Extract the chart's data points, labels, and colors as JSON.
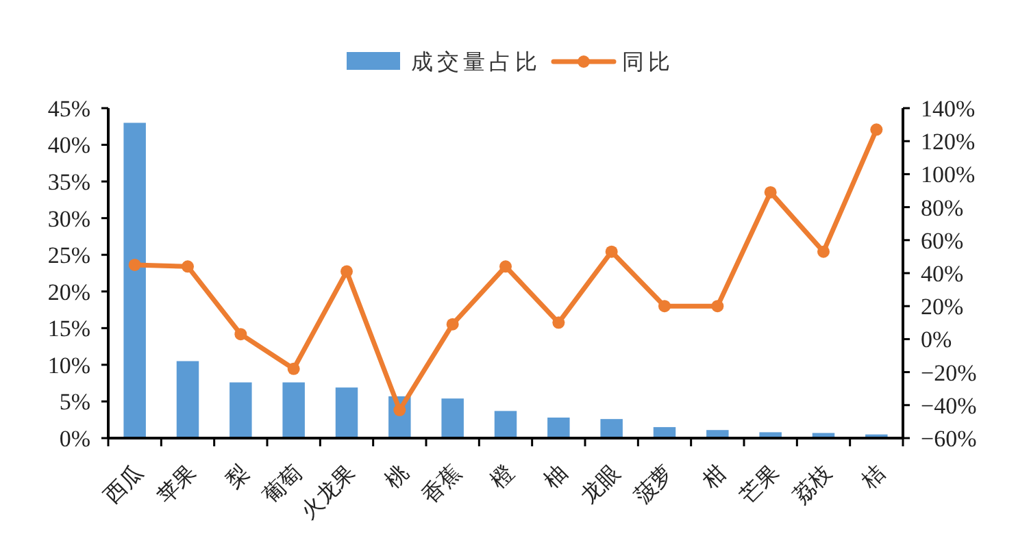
{
  "chart_data": {
    "type": "bar",
    "categories": [
      "西瓜",
      "苹果",
      "梨",
      "葡萄",
      "火龙果",
      "桃",
      "香蕉",
      "橙",
      "柚",
      "龙眼",
      "菠萝",
      "柑",
      "芒果",
      "荔枝",
      "桔"
    ],
    "series": [
      {
        "name": "成交量占比",
        "color": "#5b9bd5",
        "values": [
          43,
          10.5,
          7.6,
          7.6,
          6.9,
          5.7,
          5.4,
          3.7,
          2.8,
          2.6,
          1.5,
          1.1,
          0.8,
          0.7,
          0.5
        ]
      },
      {
        "name": "同比",
        "type": "line",
        "axis": "y2",
        "color": "#ed7d31",
        "values": [
          45,
          44,
          3,
          -18,
          41,
          -43,
          9,
          44,
          10,
          53,
          20,
          20,
          89,
          53,
          127
        ]
      }
    ],
    "ylim": [
      0,
      45
    ],
    "yticks": [
      {
        "value": 0,
        "label": "0%"
      },
      {
        "value": 5,
        "label": "5%"
      },
      {
        "value": 10,
        "label": "10%"
      },
      {
        "value": 15,
        "label": "15%"
      },
      {
        "value": 20,
        "label": "20%"
      },
      {
        "value": 25,
        "label": "25%"
      },
      {
        "value": 30,
        "label": "30%"
      },
      {
        "value": 35,
        "label": "35%"
      },
      {
        "value": 40,
        "label": "40%"
      },
      {
        "value": 45,
        "label": "45%"
      }
    ],
    "y2lim": [
      -60,
      140
    ],
    "y2ticks": [
      {
        "value": -60,
        "label": "−60%"
      },
      {
        "value": -40,
        "label": "−40%"
      },
      {
        "value": -20,
        "label": "−20%"
      },
      {
        "value": 0,
        "label": "0%"
      },
      {
        "value": 20,
        "label": "20%"
      },
      {
        "value": 40,
        "label": "40%"
      },
      {
        "value": 60,
        "label": "60%"
      },
      {
        "value": 80,
        "label": "80%"
      },
      {
        "value": 100,
        "label": "100%"
      },
      {
        "value": 120,
        "label": "120%"
      },
      {
        "value": 140,
        "label": "140%"
      }
    ],
    "legend": "top",
    "marker": "circle"
  }
}
